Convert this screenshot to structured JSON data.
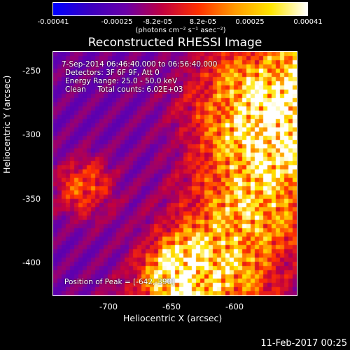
{
  "colorbar": {
    "ticks": [
      "-0.00041",
      "-0.00025",
      "-8.2e-05",
      "8.2e-05",
      "0.00025",
      "0.00041"
    ],
    "units": "(photons cm⁻² s⁻¹ asec⁻²)",
    "colors": [
      "#0000ff",
      "#3a00c0",
      "#6a00a8",
      "#c00040",
      "#ff3000",
      "#ff9a00",
      "#ffe600",
      "#ffffff"
    ]
  },
  "chart_data": {
    "type": "heatmap",
    "title": "Reconstructed RHESSI Image",
    "xlabel": "Heliocentric X (arcsec)",
    "ylabel": "Heliocentric Y (arcsec)",
    "xlim": [
      -748,
      -642
    ],
    "ylim": [
      -432,
      -238
    ],
    "xticks": [
      -700,
      -650,
      -600
    ],
    "xtick_labels": [
      "-700",
      "-650",
      "-600"
    ],
    "yticks": [
      -250,
      -300,
      -350,
      -400
    ],
    "ytick_labels": [
      "-250",
      "-300",
      "-350",
      "-400"
    ],
    "zlim": [
      -0.00041,
      0.00041
    ],
    "peak": [
      -642,
      -390
    ],
    "annotations": {
      "time": "7-Sep-2014 06:46:40.000 to 06:56:40.000",
      "detectors": "Detectors: 3F 6F 9F, Att 0",
      "energy": "Energy Range: 25.0 - 50.0 keV",
      "method": "Clean     Total counts: 6.02E+03",
      "peak_label": "Position of Peak = [-642,-390]"
    }
  },
  "footer": {
    "date": "11-Feb-2017 00:25"
  }
}
